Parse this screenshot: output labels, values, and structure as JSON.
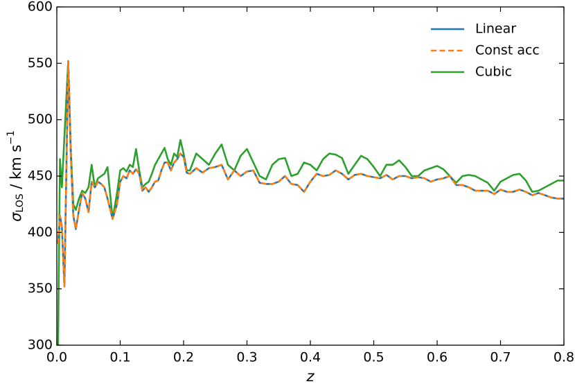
{
  "chart_data": {
    "type": "line",
    "xlabel": "z",
    "ylabel": {
      "symbol": "σ",
      "sub": "LOS",
      "unit": " / km s",
      "sup": "−1"
    },
    "x": [
      0.002,
      0.005,
      0.008,
      0.012,
      0.018,
      0.022,
      0.026,
      0.03,
      0.035,
      0.04,
      0.045,
      0.05,
      0.055,
      0.06,
      0.065,
      0.07,
      0.075,
      0.08,
      0.088,
      0.095,
      0.1,
      0.105,
      0.11,
      0.115,
      0.12,
      0.125,
      0.13,
      0.135,
      0.14,
      0.145,
      0.15,
      0.155,
      0.16,
      0.165,
      0.17,
      0.175,
      0.18,
      0.185,
      0.19,
      0.195,
      0.2,
      0.205,
      0.21,
      0.22,
      0.23,
      0.24,
      0.25,
      0.26,
      0.27,
      0.28,
      0.29,
      0.3,
      0.31,
      0.32,
      0.33,
      0.34,
      0.35,
      0.36,
      0.37,
      0.38,
      0.39,
      0.4,
      0.41,
      0.42,
      0.43,
      0.44,
      0.45,
      0.46,
      0.47,
      0.48,
      0.49,
      0.5,
      0.51,
      0.52,
      0.53,
      0.54,
      0.55,
      0.56,
      0.57,
      0.58,
      0.59,
      0.6,
      0.61,
      0.62,
      0.63,
      0.64,
      0.65,
      0.66,
      0.67,
      0.68,
      0.69,
      0.7,
      0.71,
      0.72,
      0.73,
      0.74,
      0.75,
      0.76,
      0.77,
      0.78,
      0.79,
      0.8
    ],
    "series": [
      {
        "name": "Linear",
        "color": "#1f77b4",
        "dash": false,
        "values": [
          390,
          415,
          405,
          352,
          552,
          470,
          415,
          403,
          420,
          435,
          430,
          418,
          445,
          440,
          445,
          443,
          440,
          430,
          412,
          425,
          445,
          450,
          448,
          455,
          452,
          456,
          452,
          437,
          440,
          436,
          440,
          445,
          446,
          455,
          462,
          462,
          455,
          462,
          465,
          470,
          467,
          453,
          452,
          457,
          453,
          457,
          458,
          460,
          447,
          455,
          450,
          454,
          455,
          444,
          443,
          443,
          445,
          450,
          443,
          442,
          436,
          445,
          452,
          450,
          451,
          455,
          452,
          447,
          451,
          452,
          450,
          449,
          448,
          451,
          447,
          450,
          450,
          448,
          449,
          448,
          445,
          447,
          448,
          450,
          442,
          442,
          440,
          437,
          437,
          437,
          434,
          438,
          436,
          436,
          438,
          436,
          433,
          435,
          433,
          431,
          430,
          430
        ]
      },
      {
        "name": "Const acc",
        "color": "#ff7f0e",
        "dash": true,
        "values": [
          390,
          415,
          405,
          352,
          552,
          470,
          415,
          403,
          420,
          435,
          430,
          418,
          445,
          440,
          445,
          443,
          440,
          430,
          412,
          425,
          445,
          450,
          448,
          455,
          452,
          456,
          452,
          437,
          440,
          436,
          440,
          445,
          446,
          455,
          462,
          462,
          455,
          462,
          465,
          470,
          467,
          453,
          452,
          457,
          453,
          457,
          458,
          460,
          447,
          455,
          450,
          454,
          455,
          444,
          443,
          443,
          445,
          450,
          443,
          442,
          436,
          445,
          452,
          450,
          451,
          455,
          452,
          447,
          451,
          452,
          450,
          449,
          448,
          451,
          447,
          450,
          450,
          448,
          449,
          448,
          445,
          447,
          448,
          450,
          442,
          442,
          440,
          437,
          437,
          437,
          434,
          438,
          436,
          436,
          438,
          436,
          433,
          435,
          433,
          431,
          430,
          430
        ]
      },
      {
        "name": "Cubic",
        "color": "#2ca02c",
        "dash": false,
        "values": [
          300,
          465,
          440,
          485,
          552,
          475,
          425,
          420,
          430,
          437,
          435,
          440,
          460,
          440,
          448,
          450,
          452,
          458,
          412,
          435,
          455,
          457,
          454,
          460,
          458,
          474,
          455,
          440,
          443,
          445,
          452,
          460,
          465,
          470,
          475,
          465,
          460,
          470,
          467,
          482,
          470,
          455,
          455,
          470,
          465,
          460,
          470,
          478,
          460,
          455,
          468,
          474,
          462,
          450,
          447,
          460,
          465,
          466,
          450,
          452,
          462,
          460,
          455,
          465,
          470,
          469,
          466,
          452,
          460,
          468,
          465,
          458,
          450,
          460,
          460,
          464,
          458,
          450,
          450,
          455,
          457,
          459,
          456,
          450,
          444,
          450,
          451,
          450,
          447,
          444,
          437,
          445,
          448,
          451,
          452,
          446,
          436,
          437,
          440,
          443,
          446,
          446
        ]
      }
    ],
    "xlim": [
      0,
      0.8
    ],
    "xticks": [
      {
        "value": 0,
        "label": "0.0"
      },
      0.1,
      0.2,
      0.3,
      0.4,
      0.5,
      0.6,
      0.7,
      0.8
    ],
    "ylim": [
      300,
      600
    ],
    "yticks": [
      300,
      350,
      400,
      450,
      500,
      550,
      600
    ],
    "grid": false,
    "legend": "upper right"
  }
}
